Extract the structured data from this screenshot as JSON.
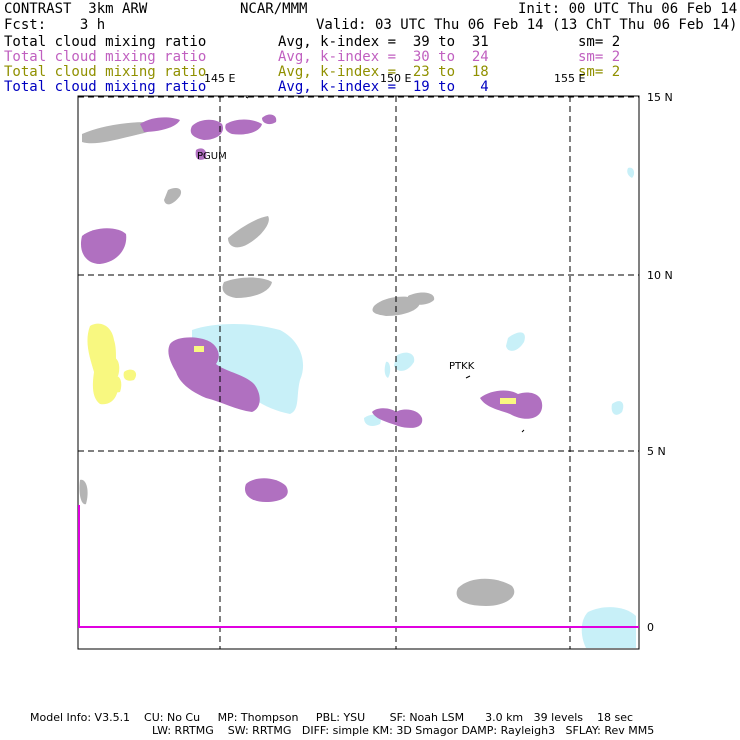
{
  "header": {
    "model": "CONTRAST  3km ARW",
    "center": "NCAR/MMM",
    "init": "Init: 00 UTC Thu 06 Feb 14",
    "fcst": "Fcst:    3 h",
    "valid": "Valid: 03 UTC Thu 06 Feb 14 (13 ChT Thu 06 Feb 14)"
  },
  "fields": [
    {
      "name": "Total cloud mixing ratio",
      "range": "Avg, k-index =  39 to  31",
      "sm": "sm= 2",
      "color": "#000000"
    },
    {
      "name": "Total cloud mixing ratio",
      "range": "Avg, k-index =  30 to  24",
      "sm": "sm= 2",
      "color": "#c060c0"
    },
    {
      "name": "Total cloud mixing ratio",
      "range": "Avg, k-index =  23 to  18",
      "sm": "sm= 2",
      "color": "#909000"
    },
    {
      "name": "Total cloud mixing ratio",
      "range": "Avg, k-index =  19 to   4",
      "sm": "",
      "color": "#0000c0"
    }
  ],
  "lon_labels": [
    "145 E",
    "150 E",
    "155 E"
  ],
  "lat_labels": [
    "15 N",
    "10 N",
    "5 N",
    "0"
  ],
  "stations": [
    "PGUM",
    "PTKK"
  ],
  "colors": {
    "grey": "#b4b4b4",
    "purple": "#b070c0",
    "lightblue": "#c8f0f8",
    "yellow": "#f8f880",
    "magenta": "#e000e0"
  },
  "footer": {
    "line1": "Model Info: V3.5.1    CU: No Cu     MP: Thompson     PBL: YSU       SF: Noah LSM      3.0 km   39 levels    18 sec",
    "line2": "LW: RRTMG    SW: RRTMG   DIFF: simple KM: 3D Smagor DAMP: Rayleigh3   SFLAY: Rev MM5"
  }
}
